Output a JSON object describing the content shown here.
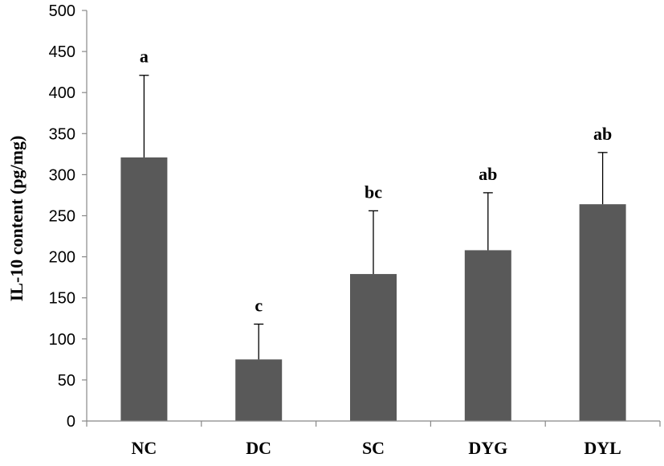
{
  "chart_data": {
    "type": "bar",
    "title": "",
    "xlabel": "",
    "ylabel": "IL-10 content (pg/mg)",
    "ylim": [
      0,
      500
    ],
    "yticks": [
      "0",
      "50",
      "100",
      "150",
      "200",
      "250",
      "300",
      "350",
      "400",
      "450",
      "500"
    ],
    "categories": [
      "NC",
      "DC",
      "SC",
      "DYG",
      "DYL"
    ],
    "values": [
      321,
      75,
      179,
      208,
      264
    ],
    "errors": [
      100,
      43,
      77,
      70,
      63
    ],
    "significance": [
      "a",
      "c",
      "bc",
      "ab",
      "ab"
    ],
    "bar_color": "#595959",
    "grid": false
  }
}
